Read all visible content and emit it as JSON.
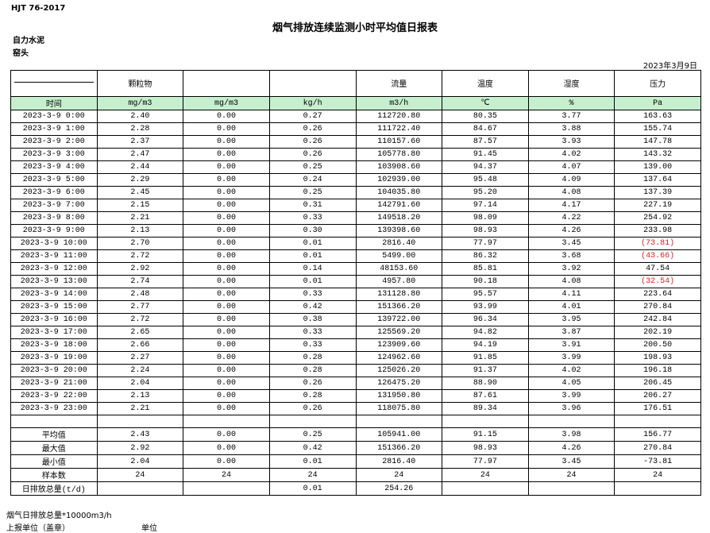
{
  "header": {
    "code": "HJT  76-2017",
    "title": "烟气排放连续监测小时平均值日报表",
    "company": "自力水泥",
    "unit": "窑头",
    "date": "2023年3月9日"
  },
  "table": {
    "columns": [
      {
        "unit": "时间"
      },
      {
        "name": "颗粒物",
        "unit": "mg/m3"
      },
      {
        "unit": "mg/m3"
      },
      {
        "unit": "kg/h"
      },
      {
        "name": "流量",
        "unit": "m3/h"
      },
      {
        "name": "温度",
        "unit": "℃"
      },
      {
        "name": "湿度",
        "unit": "%"
      },
      {
        "name": "压力",
        "unit": "Pa"
      }
    ],
    "rows": [
      [
        "2023-3-9 0:00",
        "2.40",
        "0.00",
        "0.27",
        "112720.80",
        "80.35",
        "3.77",
        "163.63"
      ],
      [
        "2023-3-9 1:00",
        "2.28",
        "0.00",
        "0.26",
        "111722.40",
        "84.67",
        "3.88",
        "155.74"
      ],
      [
        "2023-3-9 2:00",
        "2.37",
        "0.00",
        "0.26",
        "110157.60",
        "87.57",
        "3.93",
        "147.78"
      ],
      [
        "2023-3-9 3:00",
        "2.47",
        "0.00",
        "0.26",
        "105778.80",
        "91.45",
        "4.02",
        "143.32"
      ],
      [
        "2023-3-9 4:00",
        "2.44",
        "0.00",
        "0.25",
        "103908.60",
        "94.37",
        "4.07",
        "139.00"
      ],
      [
        "2023-3-9 5:00",
        "2.29",
        "0.00",
        "0.24",
        "102939.00",
        "95.48",
        "4.09",
        "137.64"
      ],
      [
        "2023-3-9 6:00",
        "2.45",
        "0.00",
        "0.25",
        "104035.80",
        "95.20",
        "4.08",
        "137.39"
      ],
      [
        "2023-3-9 7:00",
        "2.15",
        "0.00",
        "0.31",
        "142791.60",
        "97.14",
        "4.17",
        "227.19"
      ],
      [
        "2023-3-9 8:00",
        "2.21",
        "0.00",
        "0.33",
        "149518.20",
        "98.09",
        "4.22",
        "254.92"
      ],
      [
        "2023-3-9 9:00",
        "2.13",
        "0.00",
        "0.30",
        "139398.60",
        "98.93",
        "4.26",
        "233.98"
      ],
      [
        "2023-3-9 10:00",
        "2.70",
        "0.00",
        "0.01",
        "2816.40",
        "77.97",
        "3.45",
        "(73.81)"
      ],
      [
        "2023-3-9 11:00",
        "2.72",
        "0.00",
        "0.01",
        "5499.00",
        "86.32",
        "3.68",
        "(43.66)"
      ],
      [
        "2023-3-9 12:00",
        "2.92",
        "0.00",
        "0.14",
        "48153.60",
        "85.81",
        "3.92",
        "47.54"
      ],
      [
        "2023-3-9 13:00",
        "2.74",
        "0.00",
        "0.01",
        "4957.80",
        "90.18",
        "4.08",
        "(32.54)"
      ],
      [
        "2023-3-9 14:00",
        "2.48",
        "0.00",
        "0.33",
        "131128.80",
        "95.57",
        "4.11",
        "223.64"
      ],
      [
        "2023-3-9 15:00",
        "2.77",
        "0.00",
        "0.42",
        "151366.20",
        "93.99",
        "4.01",
        "270.84"
      ],
      [
        "2023-3-9 16:00",
        "2.72",
        "0.00",
        "0.38",
        "139722.00",
        "96.34",
        "3.95",
        "242.84"
      ],
      [
        "2023-3-9 17:00",
        "2.65",
        "0.00",
        "0.33",
        "125569.20",
        "94.82",
        "3.87",
        "202.19"
      ],
      [
        "2023-3-9 18:00",
        "2.66",
        "0.00",
        "0.33",
        "123909.60",
        "94.19",
        "3.91",
        "200.50"
      ],
      [
        "2023-3-9 19:00",
        "2.27",
        "0.00",
        "0.28",
        "124962.60",
        "91.85",
        "3.99",
        "198.93"
      ],
      [
        "2023-3-9 20:00",
        "2.24",
        "0.00",
        "0.28",
        "125026.20",
        "91.37",
        "4.02",
        "196.18"
      ],
      [
        "2023-3-9 21:00",
        "2.04",
        "0.00",
        "0.26",
        "126475.20",
        "88.90",
        "4.05",
        "206.45"
      ],
      [
        "2023-3-9 22:00",
        "2.13",
        "0.00",
        "0.28",
        "131950.80",
        "87.61",
        "3.99",
        "206.27"
      ],
      [
        "2023-3-9 23:00",
        "2.21",
        "0.00",
        "0.26",
        "118075.80",
        "89.34",
        "3.96",
        "176.51"
      ]
    ],
    "summary": [
      [
        "平均值",
        "2.43",
        "0.00",
        "0.25",
        "105941.00",
        "91.15",
        "3.98",
        "156.77"
      ],
      [
        "最大值",
        "2.92",
        "0.00",
        "0.42",
        "151366.20",
        "98.93",
        "4.26",
        "270.84"
      ],
      [
        "最小值",
        "2.04",
        "0.00",
        "0.01",
        "2816.40",
        "77.97",
        "3.45",
        "-73.81"
      ],
      [
        "样本数",
        "24",
        "24",
        "24",
        "24",
        "24",
        "24",
        "24"
      ],
      [
        "日排放总量(t/d)",
        null,
        null,
        "0.01",
        "254.26",
        null,
        null,
        null
      ]
    ]
  },
  "footer": {
    "note": "烟气日排放总量*10000m3/h",
    "report_unit": "上报单位（盖章）",
    "unit": "单位"
  }
}
